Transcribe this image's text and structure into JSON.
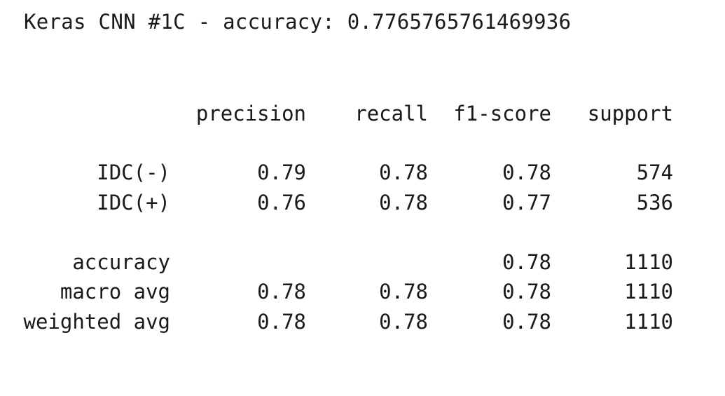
{
  "title": "Keras CNN #1C - accuracy: 0.7765765761469936",
  "report": {
    "headers": {
      "precision": "precision",
      "recall": "recall",
      "f1": "f1-score",
      "support": "support"
    },
    "rows": [
      {
        "label": "IDC(-)",
        "precision": "0.79",
        "recall": "0.78",
        "f1": "0.78",
        "support": "574"
      },
      {
        "label": "IDC(+)",
        "precision": "0.76",
        "recall": "0.78",
        "f1": "0.77",
        "support": "536"
      }
    ],
    "summary": [
      {
        "label": "accuracy",
        "precision": "",
        "recall": "",
        "f1": "0.78",
        "support": "1110"
      },
      {
        "label": "macro avg",
        "precision": "0.78",
        "recall": "0.78",
        "f1": "0.78",
        "support": "1110"
      },
      {
        "label": "weighted avg",
        "precision": "0.78",
        "recall": "0.78",
        "f1": "0.78",
        "support": "1110"
      }
    ]
  }
}
